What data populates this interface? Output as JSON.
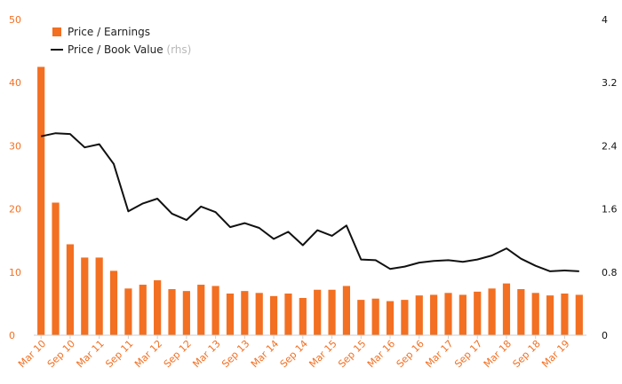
{
  "legend": {
    "bar_label": "Price / Earnings",
    "line_label": "Price / Book Value",
    "line_suffix": "(rhs)"
  },
  "colors": {
    "bar": "#f36f21",
    "line": "#111111",
    "left_axis_text": "#f36f21",
    "right_axis_text": "#111111",
    "x_axis_text": "#f36f21"
  },
  "chart_data": {
    "type": "bar",
    "title": "",
    "xlabel": "",
    "ylabel": "",
    "grid": false,
    "legend_position": "top-left",
    "y_left": {
      "min": 0,
      "max": 50,
      "ticks": [
        "0",
        "10",
        "20",
        "30",
        "40",
        "50"
      ]
    },
    "y_right": {
      "min": 0,
      "max": 4,
      "ticks": [
        "0",
        "0.8",
        "1.6",
        "2.4",
        "3.2",
        "4"
      ]
    },
    "x_tick_labels": [
      "Mar 10",
      "Sep 10",
      "Mar 11",
      "Sep 11",
      "Mar 12",
      "Sep 12",
      "Mar 13",
      "Sep 13",
      "Mar 14",
      "Sep 14",
      "Mar 15",
      "Sep 15",
      "Mar 16",
      "Sep 16",
      "Mar 17",
      "Sep 17",
      "Mar 18",
      "Sep 18",
      "Mar 19"
    ],
    "x": [
      "Mar 10",
      "Jun 10",
      "Sep 10",
      "Dec 10",
      "Mar 11",
      "Jun 11",
      "Sep 11",
      "Dec 11",
      "Mar 12",
      "Jun 12",
      "Sep 12",
      "Dec 12",
      "Mar 13",
      "Jun 13",
      "Sep 13",
      "Dec 13",
      "Mar 14",
      "Jun 14",
      "Sep 14",
      "Dec 14",
      "Mar 15",
      "Jun 15",
      "Sep 15",
      "Dec 15",
      "Mar 16",
      "Jun 16",
      "Sep 16",
      "Dec 16",
      "Mar 17",
      "Jun 17",
      "Sep 17",
      "Dec 17",
      "Mar 18",
      "Jun 18",
      "Sep 18",
      "Dec 18",
      "Mar 19",
      "Jun 19"
    ],
    "series": [
      {
        "name": "Price / Earnings",
        "type": "bar",
        "axis": "left",
        "values": [
          42.5,
          21.0,
          14.4,
          12.3,
          12.3,
          10.2,
          7.4,
          8.0,
          8.7,
          7.3,
          7.0,
          8.0,
          7.8,
          6.6,
          7.0,
          6.7,
          6.2,
          6.6,
          5.9,
          7.2,
          7.2,
          7.8,
          5.6,
          5.8,
          5.4,
          5.6,
          6.3,
          6.4,
          6.7,
          6.4,
          6.9,
          7.4,
          8.2,
          7.3,
          6.7,
          6.3,
          6.6,
          6.4
        ]
      },
      {
        "name": "Price / Book Value",
        "type": "line",
        "axis": "right",
        "values": [
          2.52,
          2.56,
          2.55,
          2.38,
          2.42,
          2.17,
          1.57,
          1.67,
          1.73,
          1.54,
          1.46,
          1.63,
          1.56,
          1.37,
          1.42,
          1.36,
          1.22,
          1.31,
          1.14,
          1.33,
          1.26,
          1.39,
          0.96,
          0.95,
          0.84,
          0.87,
          0.92,
          0.94,
          0.95,
          0.93,
          0.96,
          1.01,
          1.1,
          0.97,
          0.88,
          0.81,
          0.82,
          0.81
        ]
      }
    ]
  }
}
